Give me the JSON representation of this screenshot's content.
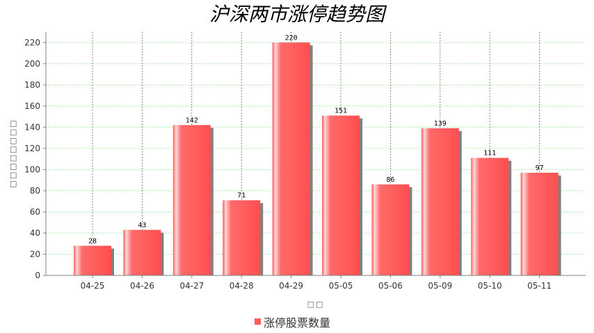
{
  "chart_data": {
    "type": "bar",
    "title": "沪深两市涨停趋势图",
    "xlabel": "□□",
    "ylabel": "□□□□□□□□",
    "categories": [
      "04-25",
      "04-26",
      "04-27",
      "04-28",
      "04-29",
      "05-05",
      "05-06",
      "05-09",
      "05-10",
      "05-11"
    ],
    "series": [
      {
        "name": "涨停股票数量",
        "values": [
          28,
          43,
          142,
          71,
          220,
          151,
          86,
          139,
          111,
          97
        ]
      }
    ],
    "ylim": [
      0,
      230
    ],
    "yticks": [
      0,
      20,
      40,
      60,
      80,
      100,
      120,
      140,
      160,
      180,
      200,
      220
    ],
    "grid": true,
    "legend_position": "bottom",
    "colors": {
      "bar": "#ff5a5a",
      "bar_highlight": "#ffd8d8",
      "shadow": "#808080",
      "grid": "#90ee90",
      "vgrid": "#555555"
    }
  }
}
